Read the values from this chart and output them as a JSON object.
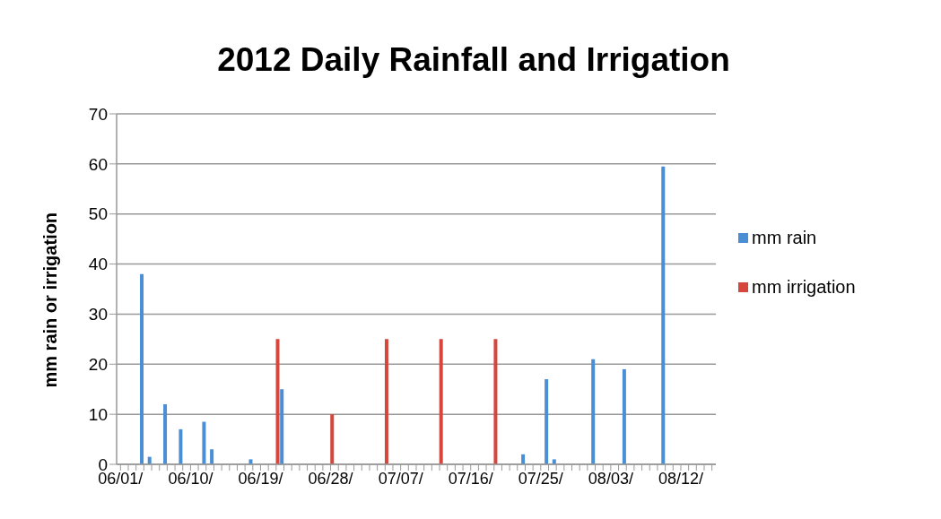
{
  "chart_data": {
    "type": "bar",
    "title": "2012 Daily Rainfall and Irrigation",
    "ylabel": "mm rain or irrigation",
    "categories": [
      "06/01/",
      null,
      null,
      null,
      null,
      null,
      null,
      null,
      null,
      "06/10/",
      null,
      null,
      null,
      null,
      null,
      null,
      null,
      null,
      "06/19/",
      null,
      null,
      null,
      null,
      null,
      null,
      null,
      null,
      "06/28/",
      null,
      null,
      null,
      null,
      null,
      null,
      null,
      null,
      "07/07/",
      null,
      null,
      null,
      null,
      null,
      null,
      null,
      null,
      "07/16/",
      null,
      null,
      null,
      null,
      null,
      null,
      null,
      null,
      "07/25/",
      null,
      null,
      null,
      null,
      null,
      null,
      null,
      null,
      "08/03/",
      null,
      null,
      null,
      null,
      null,
      null,
      null,
      null,
      "08/12/",
      null,
      null,
      null,
      null
    ],
    "series": [
      {
        "name": "mm rain",
        "color": "#4a8fd6",
        "values": [
          null,
          null,
          null,
          38,
          1.5,
          null,
          12,
          null,
          7,
          null,
          null,
          8.5,
          3,
          null,
          null,
          null,
          null,
          1,
          null,
          null,
          null,
          15,
          null,
          null,
          null,
          null,
          null,
          null,
          null,
          null,
          null,
          null,
          null,
          null,
          null,
          null,
          null,
          null,
          null,
          null,
          null,
          null,
          null,
          null,
          null,
          null,
          null,
          null,
          null,
          null,
          null,
          null,
          2,
          null,
          null,
          17,
          1,
          null,
          null,
          null,
          null,
          21,
          null,
          null,
          null,
          19,
          null,
          null,
          null,
          null,
          59.5,
          null,
          null,
          null,
          null,
          null,
          null
        ]
      },
      {
        "name": "mm irrigation",
        "color": "#d5463d",
        "values": [
          null,
          null,
          null,
          null,
          null,
          null,
          null,
          null,
          null,
          null,
          null,
          null,
          null,
          null,
          null,
          null,
          null,
          null,
          null,
          null,
          25,
          null,
          null,
          null,
          null,
          null,
          null,
          10,
          null,
          null,
          null,
          null,
          null,
          null,
          25,
          null,
          null,
          null,
          null,
          null,
          null,
          25,
          null,
          null,
          null,
          null,
          null,
          null,
          25,
          null,
          null,
          null,
          null,
          null,
          null,
          null,
          null,
          null,
          null,
          null,
          null,
          null,
          null,
          null,
          null,
          null,
          null,
          null,
          null,
          null,
          null,
          null,
          null,
          null,
          null,
          null,
          null
        ]
      }
    ],
    "ylim": [
      0,
      70
    ],
    "yticks": [
      0,
      10,
      20,
      30,
      40,
      50,
      60,
      70
    ],
    "grid": "y",
    "legend": "right"
  }
}
